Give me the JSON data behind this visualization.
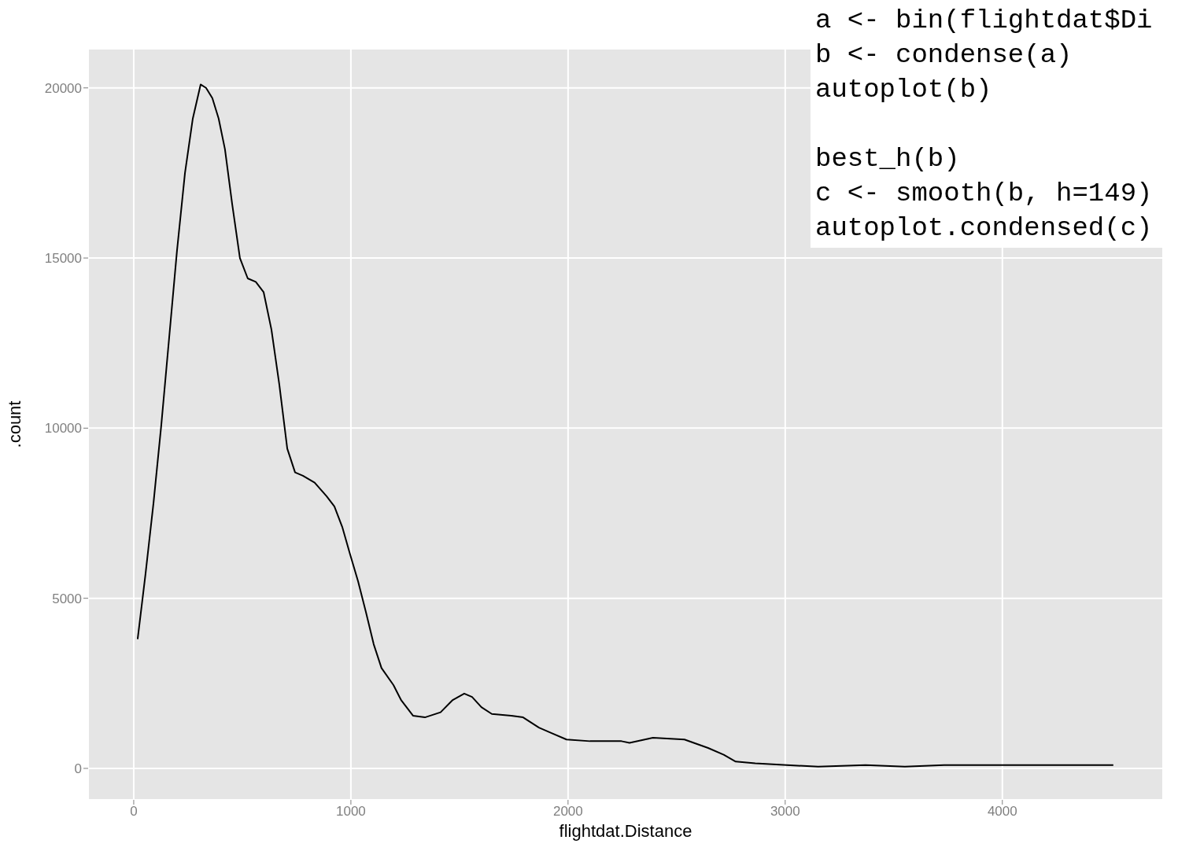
{
  "chart_data": {
    "type": "line",
    "xlabel": "flightdat.Distance",
    "ylabel": ".count",
    "x": [
      18,
      54,
      91,
      127,
      163,
      199,
      236,
      272,
      308,
      333,
      362,
      391,
      420,
      453,
      489,
      525,
      562,
      598,
      634,
      670,
      707,
      743,
      779,
      833,
      888,
      924,
      960,
      996,
      1033,
      1069,
      1105,
      1141,
      1196,
      1232,
      1286,
      1341,
      1413,
      1467,
      1522,
      1558,
      1601,
      1649,
      1739,
      1793,
      1866,
      1920,
      1993,
      2101,
      2246,
      2283,
      2391,
      2536,
      2645,
      2717,
      2772,
      2862,
      3007,
      3152,
      3370,
      3551,
      3732,
      4094,
      4511
    ],
    "series": [
      {
        "color": "#000000",
        "values": [
          3800,
          5700,
          7800,
          10100,
          12650,
          15200,
          17500,
          19100,
          20100,
          20000,
          19700,
          19100,
          18200,
          16600,
          15000,
          14400,
          14300,
          14000,
          12900,
          11300,
          9400,
          8700,
          8600,
          8400,
          8000,
          7700,
          7100,
          6300,
          5500,
          4600,
          3650,
          2950,
          2450,
          2000,
          1550,
          1500,
          1650,
          2000,
          2200,
          2100,
          1800,
          1600,
          1550,
          1500,
          1200,
          1050,
          850,
          800,
          800,
          750,
          900,
          850,
          600,
          400,
          200,
          150,
          100,
          50,
          100,
          50,
          100,
          100,
          100
        ]
      }
    ],
    "xlim": [
      -210,
      4740
    ],
    "xticks": [
      0,
      1000,
      2000,
      3000,
      4000
    ],
    "ylim": [
      -925,
      21150
    ],
    "yticks": [
      0,
      5000,
      10000,
      15000,
      20000
    ],
    "grid": true,
    "marker": "none",
    "line_style": "solid",
    "legend": false,
    "annotations": [
      "a <- bin(flightdat$Di\nb <- condense(a)\nautoplot(b)",
      "best_h(b)\nc <- smooth(b, h=149)\nautoplot.condensed(c)"
    ]
  }
}
